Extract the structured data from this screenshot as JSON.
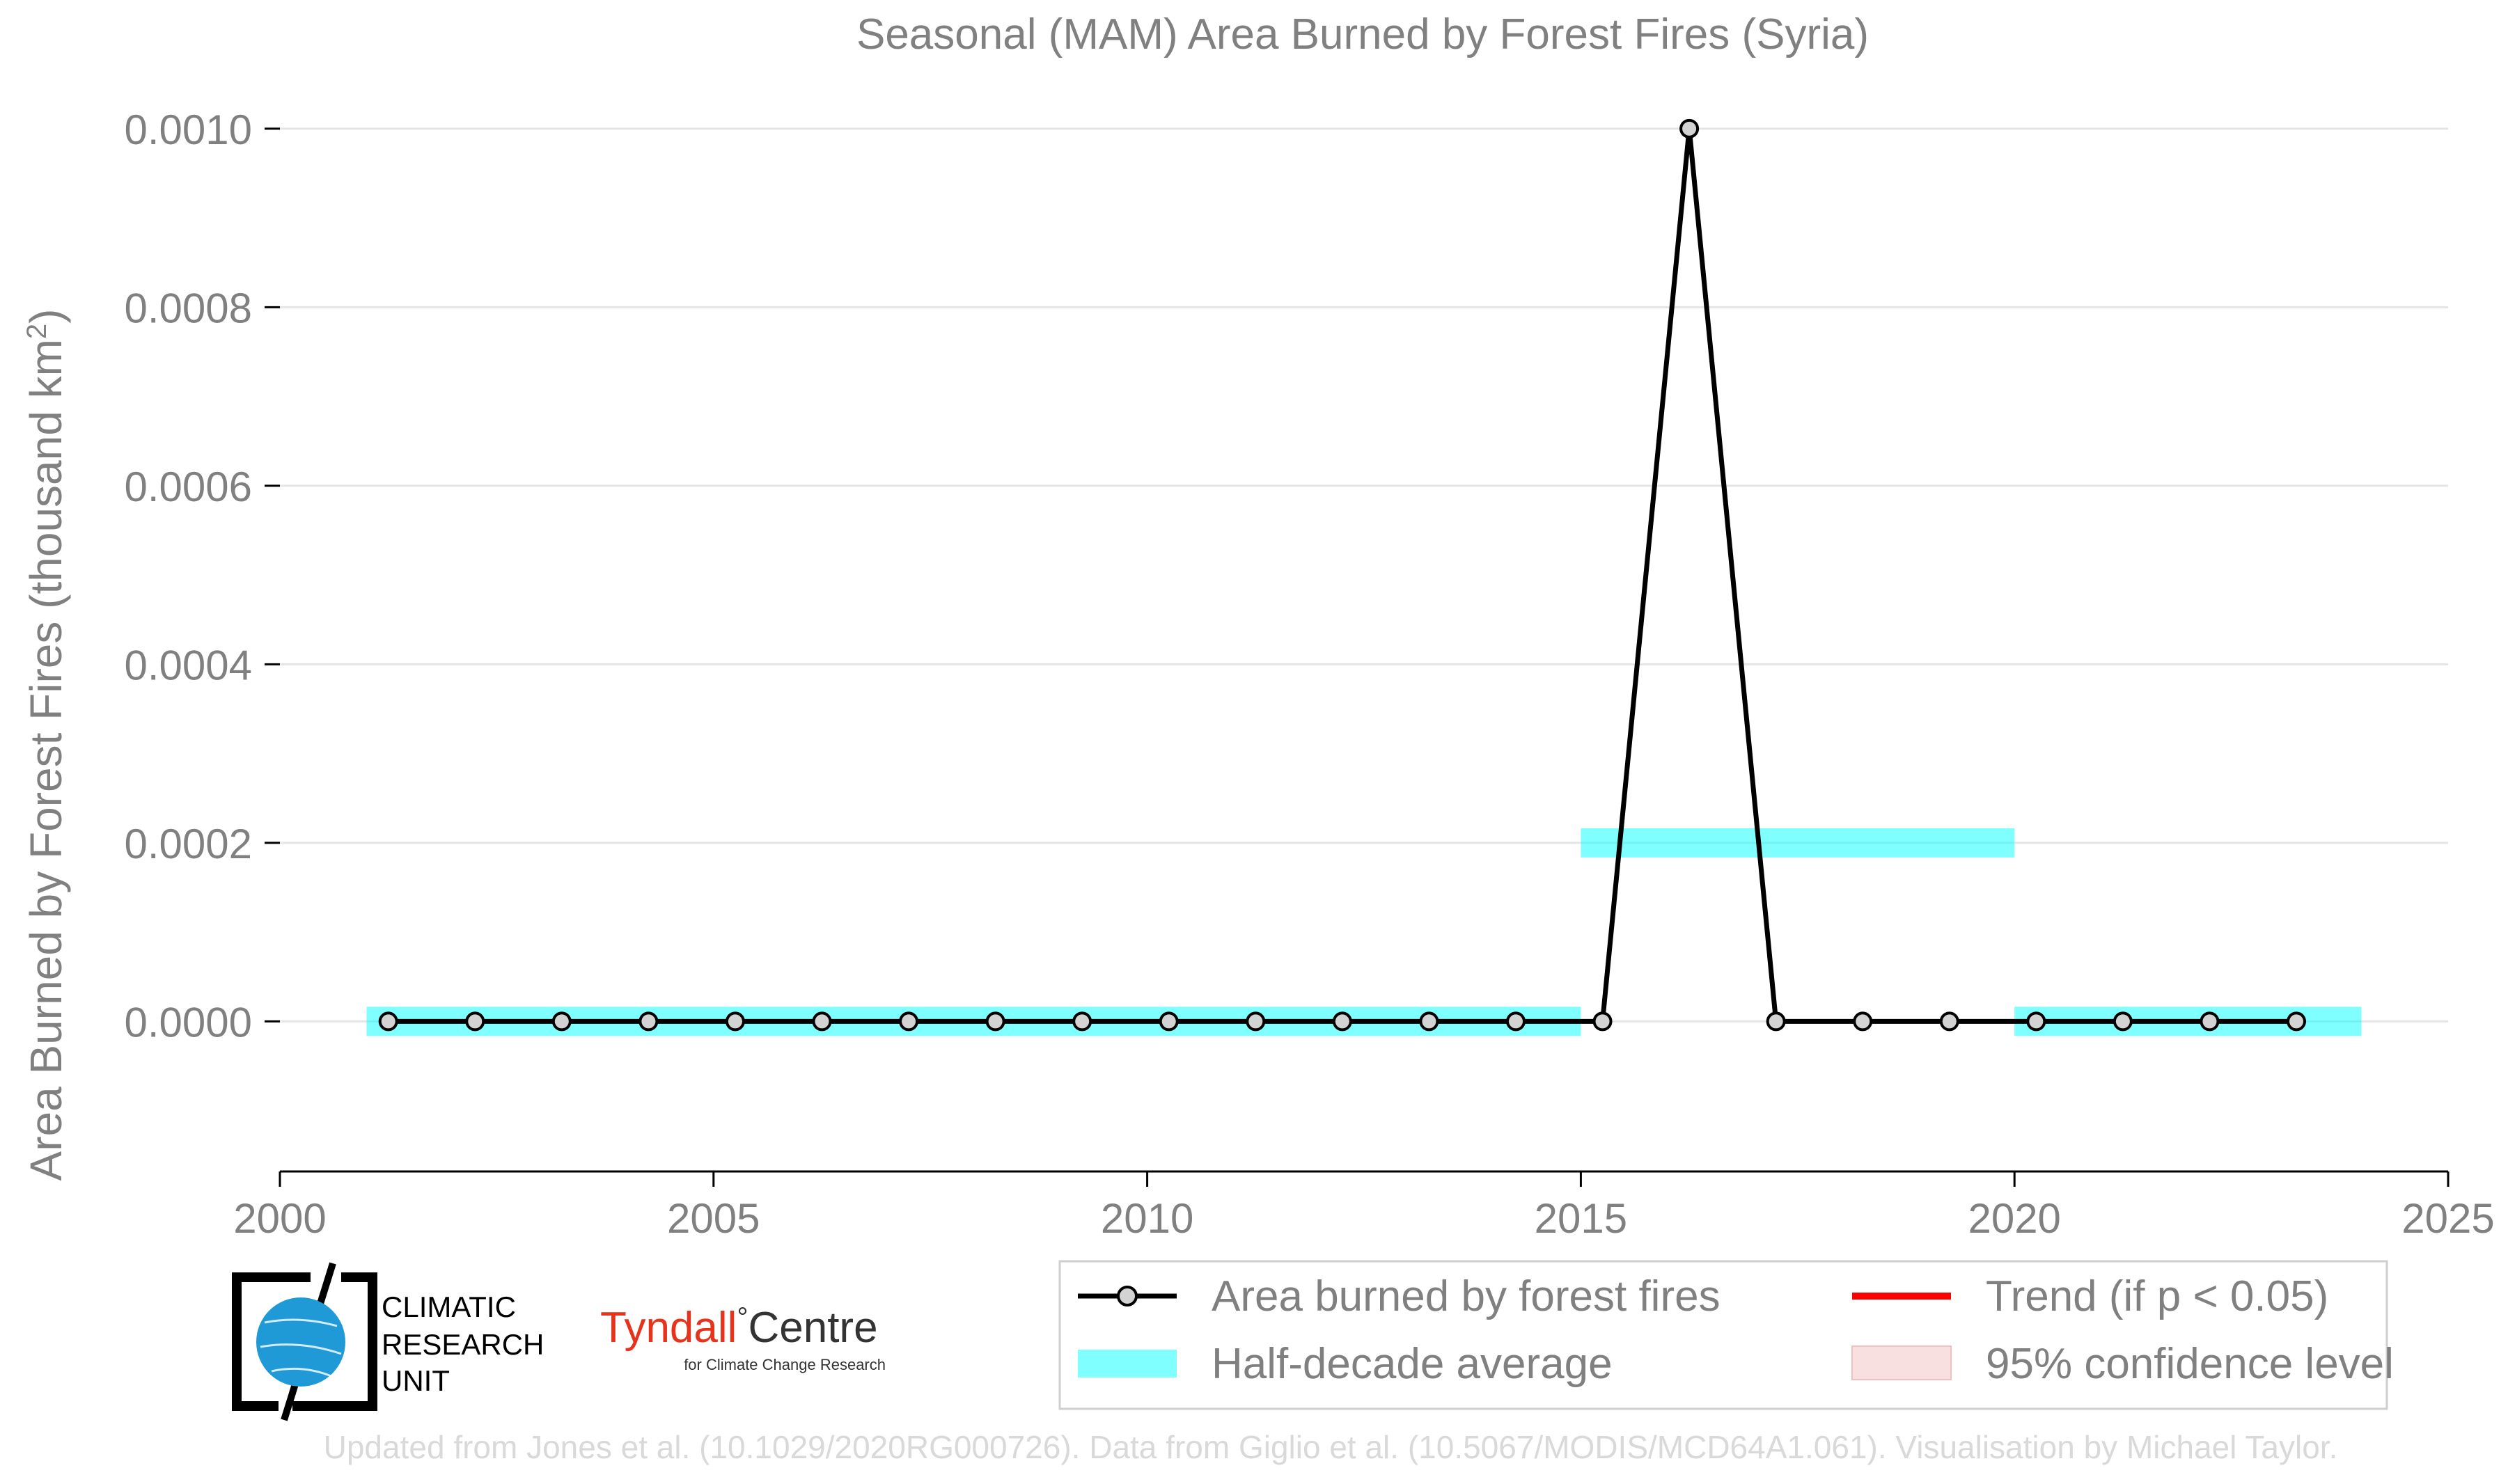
{
  "chart_data": {
    "type": "line",
    "title": "Seasonal (MAM) Area Burned by Forest Fires (Syria)",
    "xlabel": "",
    "ylabel": "Area Burned by Forest Fires (thousand km²)",
    "ylabel_main": "Area Burned by Forest Fires (thousand km",
    "ylabel_sup": "2",
    "ylabel_close": ")",
    "xlim": [
      2000,
      2025
    ],
    "ylim": [
      -8e-05,
      0.00101
    ],
    "x_ticks": [
      2000,
      2005,
      2010,
      2015,
      2020,
      2025
    ],
    "x_tick_labels": [
      "2000",
      "2005",
      "2010",
      "2015",
      "2020",
      "2025"
    ],
    "y_ticks": [
      0,
      0.0002,
      0.0004,
      0.0006,
      0.0008,
      0.001
    ],
    "y_tick_labels": [
      "0.0000",
      "0.0002",
      "0.0004",
      "0.0006",
      "0.0008",
      "0.0010"
    ],
    "grid": true,
    "series": [
      {
        "name": "Area burned by forest fires",
        "color": "#000000",
        "marker_fill": "#d3d3d3",
        "x": [
          2001.25,
          2002.25,
          2003.25,
          2004.25,
          2005.25,
          2006.25,
          2007.25,
          2008.25,
          2009.25,
          2010.25,
          2011.25,
          2012.25,
          2013.25,
          2014.25,
          2015.25,
          2016.25,
          2017.25,
          2018.25,
          2019.25,
          2020.25,
          2021.25,
          2022.25,
          2023.25
        ],
        "values": [
          0,
          0,
          0,
          0,
          0,
          0,
          0,
          0,
          0,
          0,
          0,
          0,
          0,
          0,
          0,
          0.001,
          0,
          0,
          0,
          0,
          0,
          0,
          0
        ]
      }
    ],
    "half_decade_average": {
      "name": "Half-decade average",
      "color": "#00ffff",
      "segments": [
        {
          "x_start": 2001.0,
          "x_end": 2015.0,
          "value": 0
        },
        {
          "x_start": 2015.0,
          "x_end": 2020.0,
          "value": 0.0002
        },
        {
          "x_start": 2020.0,
          "x_end": 2024.0,
          "value": 0
        }
      ]
    },
    "legend": {
      "position": "bottom-right",
      "entries": [
        {
          "label": "Area burned by forest fires",
          "kind": "line-marker",
          "color": "#000000"
        },
        {
          "label": "Trend (if p < 0.05)",
          "kind": "line",
          "color": "#ff0000"
        },
        {
          "label": "Half-decade average",
          "kind": "band",
          "color": "#00ffff"
        },
        {
          "label": "95% confidence level",
          "kind": "band",
          "color": "#f4cccc"
        }
      ]
    }
  },
  "logos": {
    "cru_line1": "CLIMATIC",
    "cru_line2": "RESEARCH",
    "cru_line3": "UNIT",
    "tyndall_main": "Tyndall",
    "tyndall_degree": "°",
    "tyndall_centre": "Centre",
    "tyndall_sub": "for Climate Change Research"
  },
  "credit": "Updated from Jones et al. (10.1029/2020RG000726). Data from Giglio et al. (10.5067/MODIS/MCD64A1.061). Visualisation by Michael Taylor.",
  "colors": {
    "text": "#808080",
    "grid": "#e5e5e5",
    "credit": "#d9d9d9",
    "tyndall_red": "#e8331c",
    "cru_blue": "#1f9ad6"
  }
}
